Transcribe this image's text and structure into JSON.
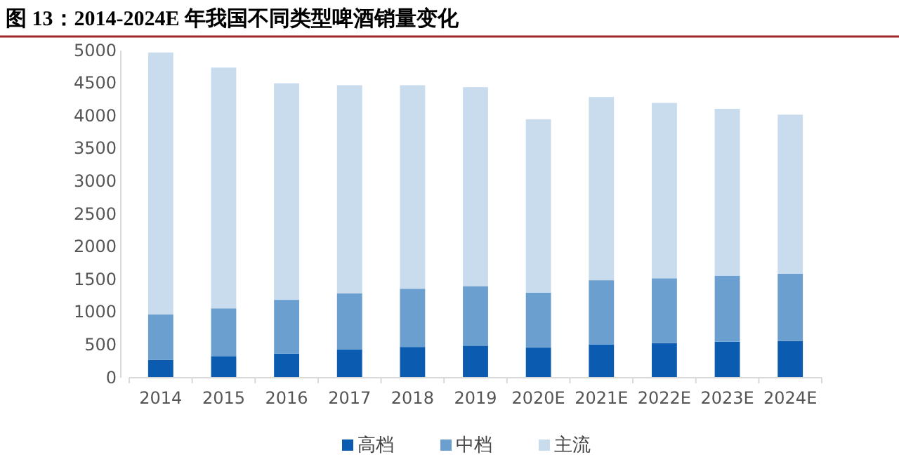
{
  "chart_data": {
    "type": "bar",
    "stacked": true,
    "title": "图 13：2014-2024E 年我国不同类型啤酒销量变化",
    "categories": [
      "2014",
      "2015",
      "2016",
      "2017",
      "2018",
      "2019",
      "2020E",
      "2021E",
      "2022E",
      "2023E",
      "2024E"
    ],
    "series": [
      {
        "name": "高档",
        "color": "#0b5cb0",
        "values": [
          270,
          330,
          370,
          430,
          470,
          490,
          460,
          510,
          530,
          550,
          560
        ]
      },
      {
        "name": "中档",
        "color": "#6a9fd0",
        "values": [
          700,
          730,
          820,
          860,
          890,
          910,
          840,
          980,
          990,
          1010,
          1030
        ]
      },
      {
        "name": "主流",
        "color": "#c9dcee",
        "values": [
          4000,
          3680,
          3310,
          3180,
          3110,
          3040,
          2650,
          2800,
          2680,
          2550,
          2430
        ]
      }
    ],
    "ylim": [
      0,
      5000
    ],
    "yticks": [
      0,
      500,
      1000,
      1500,
      2000,
      2500,
      3000,
      3500,
      4000,
      4500,
      5000
    ],
    "grid": false,
    "legend": "bottom"
  }
}
